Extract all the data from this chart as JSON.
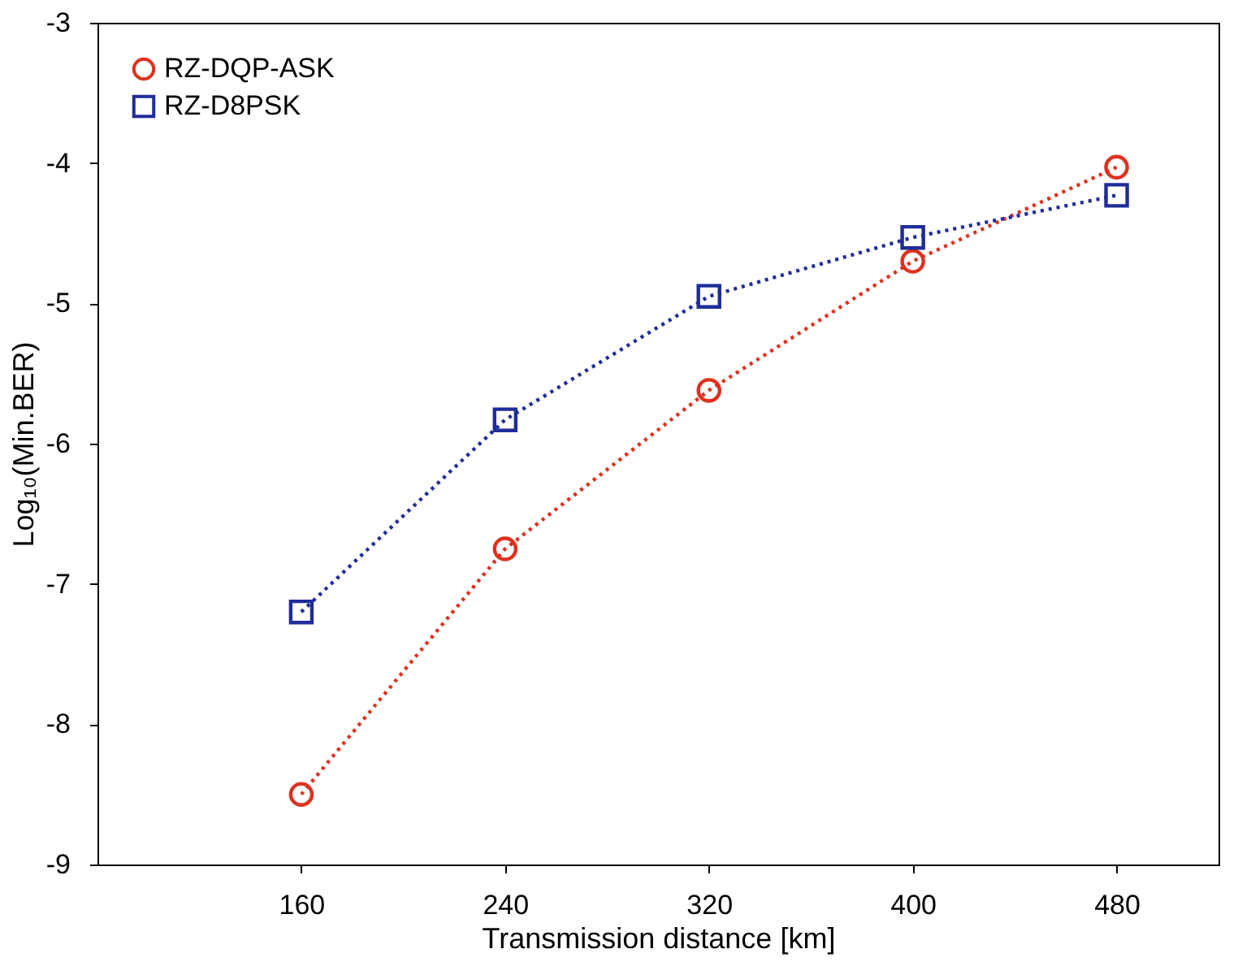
{
  "chart_data": {
    "type": "line",
    "xlabel": "Transmission distance [km]",
    "ylabel": "Log₁₀(Min.BER)",
    "x": [
      160,
      240,
      320,
      400,
      480
    ],
    "series": [
      {
        "name": "RZ-DQP-ASK",
        "color": "#e0301e",
        "marker": "circle",
        "values": [
          -8.5,
          -6.75,
          -5.62,
          -4.7,
          -4.03
        ]
      },
      {
        "name": "RZ-D8PSK",
        "color": "#1f2d9a",
        "marker": "square",
        "values": [
          -7.2,
          -5.83,
          -4.95,
          -4.53,
          -4.23
        ]
      }
    ],
    "xlim": [
      80,
      520
    ],
    "xticks": [
      160,
      240,
      320,
      400,
      480
    ],
    "ylim": [
      -9,
      -3
    ],
    "yticks": [
      -9,
      -8,
      -7,
      -6,
      -5,
      -4,
      -3
    ],
    "line_style": "dotted",
    "grid": false,
    "legend": "top left"
  }
}
